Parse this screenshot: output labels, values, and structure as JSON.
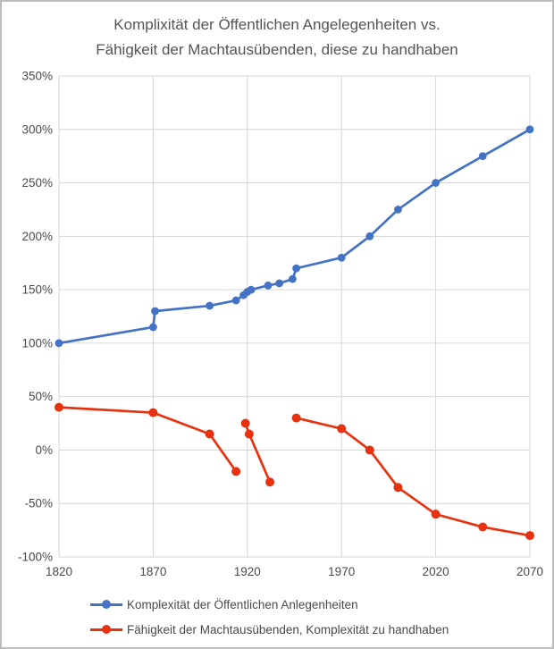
{
  "title": {
    "line1": "Komplixität der Öffentlichen Angelegenheiten vs.",
    "line2": "Fähigkeit der Machtausübenden, diese zu handhaben"
  },
  "colors": {
    "series_blue": "#4472C4",
    "series_red": "#E8320F",
    "gridline": "#D6D6D6",
    "tick_label": "#4a4a4a",
    "title_text": "#545454",
    "background": "#ffffff",
    "canvas_border": "#bdbdbd"
  },
  "chart_data": {
    "type": "line",
    "title": "Komplixität der Öffentlichen Angelegenheiten vs. Fähigkeit der Machtausübenden, diese zu handhaben",
    "xlabel": "",
    "ylabel": "",
    "grid": true,
    "legend_position": "bottom",
    "x_axis": {
      "range": [
        1820,
        2070
      ],
      "ticks": [
        1820,
        1870,
        1920,
        1970,
        2020,
        2070
      ]
    },
    "y_axis": {
      "range": [
        -100,
        350
      ],
      "ticks": [
        350,
        300,
        250,
        200,
        150,
        100,
        50,
        0,
        -50,
        -100
      ],
      "tick_suffix": "%"
    },
    "series": [
      {
        "name": "Komplexität der Öffentlichen Anlegenheiten",
        "color": "#4472C4",
        "segments": [
          [
            [
              1820,
              100
            ],
            [
              1870,
              115
            ],
            [
              1871,
              130
            ],
            [
              1900,
              135
            ],
            [
              1914,
              140
            ],
            [
              1918,
              145
            ],
            [
              1920,
              148
            ],
            [
              1922,
              150
            ],
            [
              1931,
              154
            ],
            [
              1937,
              156
            ],
            [
              1944,
              160
            ],
            [
              1946,
              170
            ],
            [
              1970,
              180
            ],
            [
              1985,
              200
            ],
            [
              2000,
              225
            ],
            [
              2020,
              250
            ],
            [
              2045,
              275
            ],
            [
              2070,
              300
            ]
          ]
        ]
      },
      {
        "name": "Fähigkeit der Machtausübenden, Komplexität zu handhaben",
        "color": "#E8320F",
        "segments": [
          [
            [
              1820,
              40
            ],
            [
              1870,
              35
            ],
            [
              1900,
              15
            ],
            [
              1914,
              -20
            ]
          ],
          [
            [
              1919,
              25
            ],
            [
              1921,
              15
            ],
            [
              1932,
              -30
            ]
          ],
          [
            [
              1946,
              30
            ],
            [
              1970,
              20
            ],
            [
              1985,
              0
            ],
            [
              2000,
              -35
            ],
            [
              2020,
              -60
            ],
            [
              2045,
              -72
            ],
            [
              2070,
              -80
            ]
          ]
        ]
      }
    ]
  }
}
